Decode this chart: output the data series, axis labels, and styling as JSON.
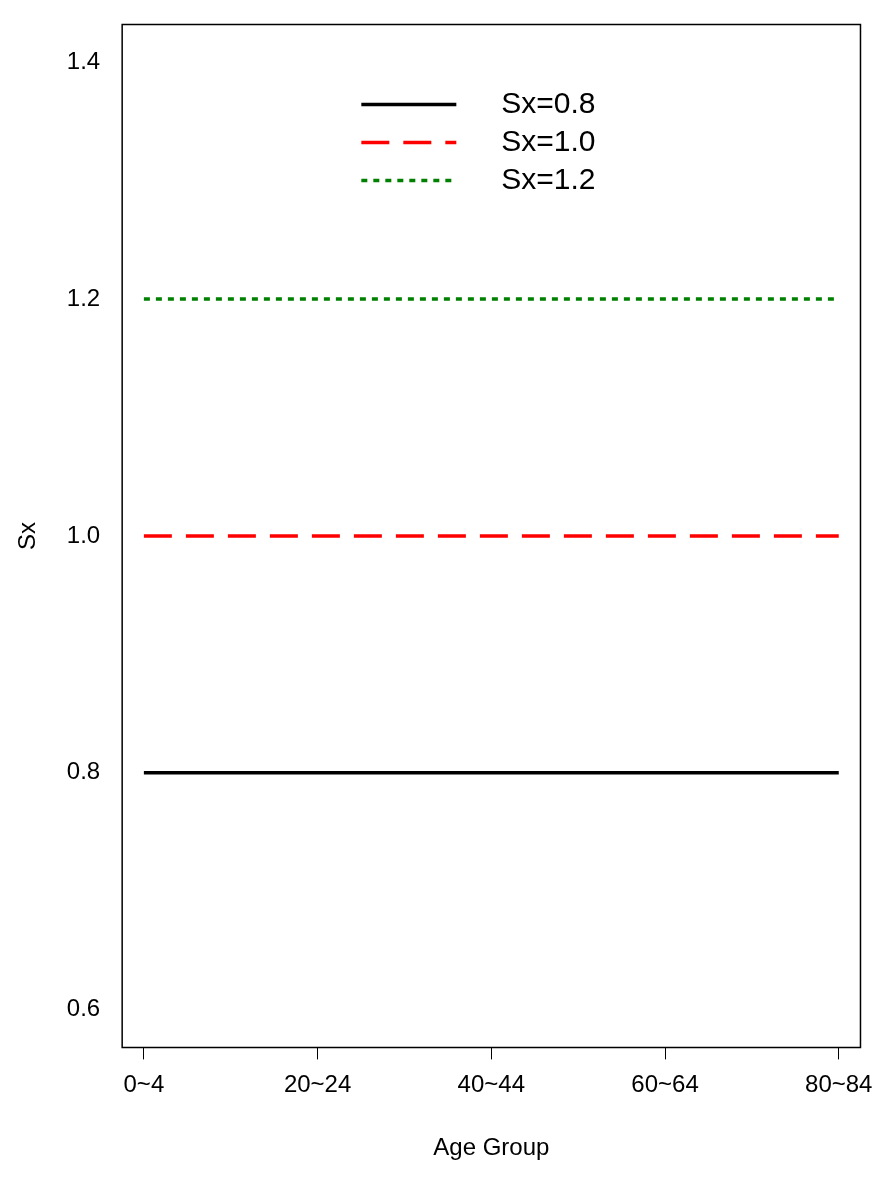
{
  "chart_data": {
    "type": "line",
    "xlabel": "Age Group",
    "ylabel": "Sx",
    "categories": [
      "0~4",
      null,
      null,
      null,
      "20~24",
      null,
      null,
      null,
      "40~44",
      null,
      null,
      null,
      "60~64",
      null,
      null,
      null,
      "80~84"
    ],
    "series": [
      {
        "name": "Sx=0.8",
        "color": "#000000",
        "line_style": "solid",
        "values": [
          0.8,
          0.8,
          0.8,
          0.8,
          0.8,
          0.8,
          0.8,
          0.8,
          0.8,
          0.8,
          0.8,
          0.8,
          0.8,
          0.8,
          0.8,
          0.8,
          0.8
        ]
      },
      {
        "name": "Sx=1.0",
        "color": "#ff0000",
        "line_style": "dashed",
        "values": [
          1.0,
          1.0,
          1.0,
          1.0,
          1.0,
          1.0,
          1.0,
          1.0,
          1.0,
          1.0,
          1.0,
          1.0,
          1.0,
          1.0,
          1.0,
          1.0,
          1.0
        ]
      },
      {
        "name": "Sx=1.2",
        "color": "#008000",
        "line_style": "dotted",
        "values": [
          1.2,
          1.2,
          1.2,
          1.2,
          1.2,
          1.2,
          1.2,
          1.2,
          1.2,
          1.2,
          1.2,
          1.2,
          1.2,
          1.2,
          1.2,
          1.2,
          1.2
        ]
      }
    ],
    "ylim": [
      0.568,
      1.432
    ],
    "yticks": [
      {
        "value": 0.6,
        "label": "0.6"
      },
      {
        "value": 0.8,
        "label": "0.8"
      },
      {
        "value": 1.0,
        "label": "1.0"
      },
      {
        "value": 1.2,
        "label": "1.2"
      },
      {
        "value": 1.4,
        "label": "1.4"
      }
    ],
    "grid": false,
    "legend": "top",
    "marker": "none"
  }
}
